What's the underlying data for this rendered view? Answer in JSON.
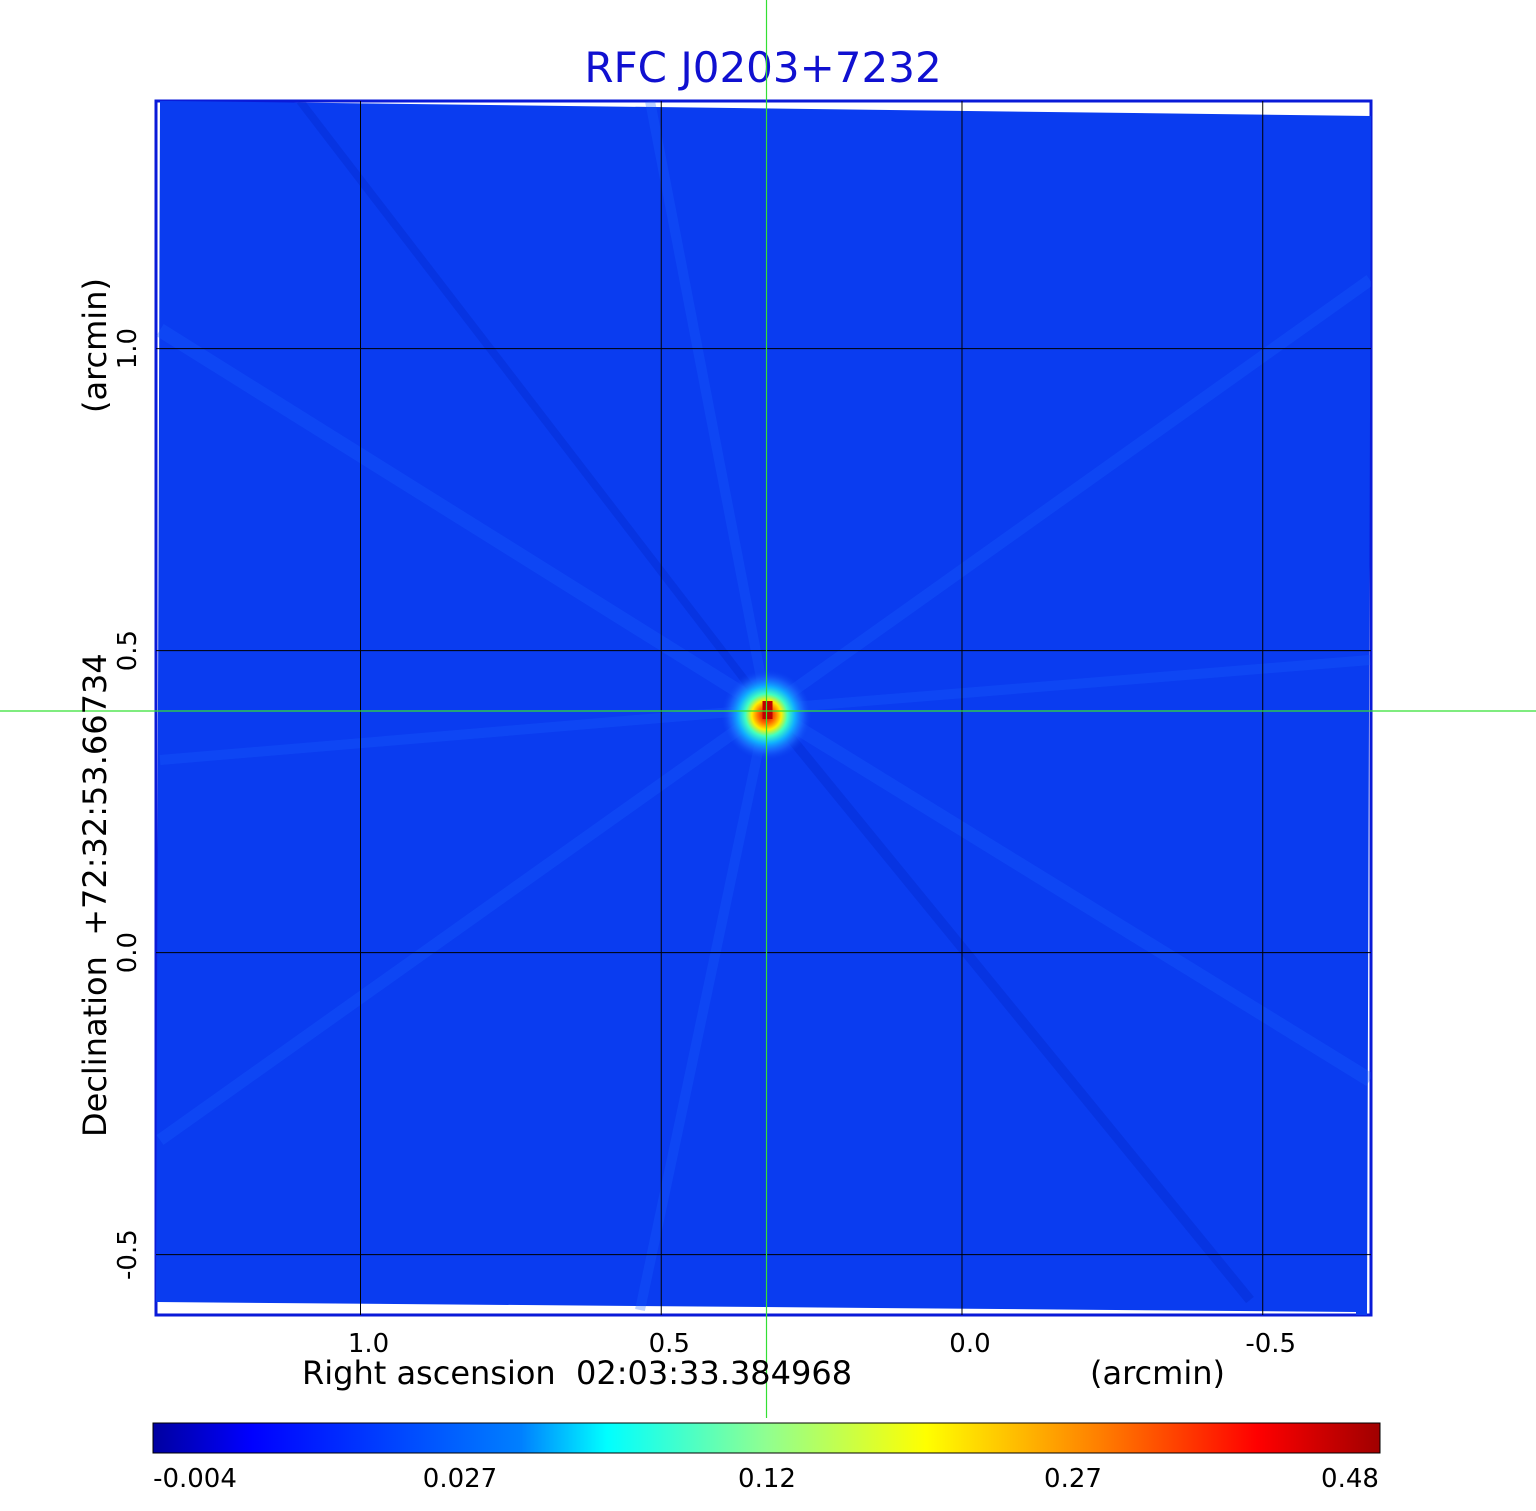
{
  "chart_data": {
    "type": "heatmap",
    "title": "RFC J0203+7232",
    "xlabel": "Right ascension  02:03:33.384968",
    "xlabel_unit": "(arcmin)",
    "ylabel": "Declination  +72:32:53.66734",
    "ylabel_unit": "(arcmin)",
    "x_reversed": true,
    "xlim": [
      1.34,
      -0.68
    ],
    "ylim": [
      -0.6,
      1.41
    ],
    "x_ticks": [
      {
        "value": 1.0,
        "label": "1.0"
      },
      {
        "value": 0.5,
        "label": "0.5"
      },
      {
        "value": 0.0,
        "label": "0.0"
      },
      {
        "value": -0.5,
        "label": "-0.5"
      }
    ],
    "y_ticks": [
      {
        "value": 1.0,
        "label": "1.0"
      },
      {
        "value": 0.5,
        "label": "0.5"
      },
      {
        "value": 0.0,
        "label": "0.0"
      },
      {
        "value": -0.5,
        "label": "-0.5"
      }
    ],
    "grid": true,
    "source_peak": {
      "x": 0.325,
      "y": 0.4,
      "value": 0.48
    },
    "crosshair": {
      "x": 0.325,
      "y": 0.4
    },
    "colorbar": {
      "scale": "nonlinear",
      "min": -0.004,
      "max": 0.48,
      "ticks": [
        "-0.004",
        "0.027",
        "0.12",
        "0.27",
        "0.48"
      ],
      "colormap": "jet"
    }
  },
  "colors": {
    "title": "#1010d0",
    "frame": "#0a1ad8",
    "background_map": "#0a3cf0",
    "grid": "#000000",
    "crosshair": "#33e033",
    "peak": "#c00000"
  }
}
